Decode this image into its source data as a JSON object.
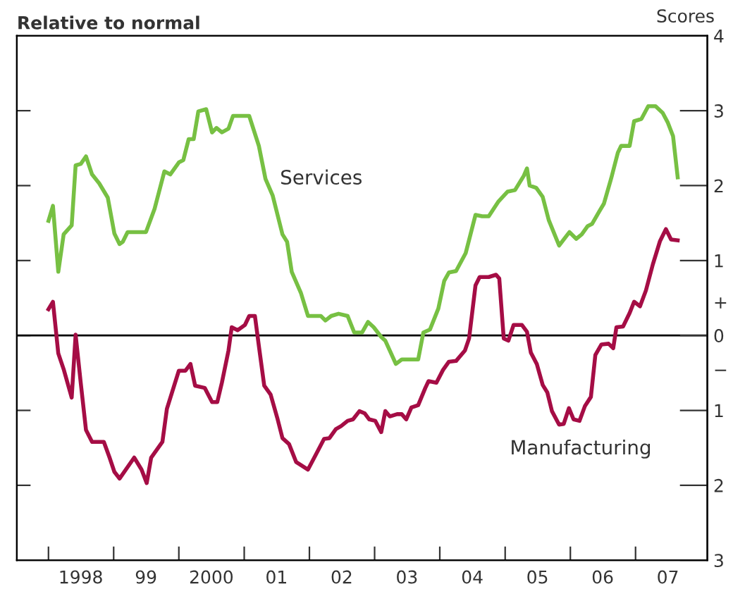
{
  "chart_data": {
    "type": "line",
    "ylabel": "Relative to normal",
    "y2label": "Scores",
    "xlim": [
      "1997-07-08",
      "2008-02-07"
    ],
    "xticks": [
      {
        "value": "1998-01-01",
        "label": null
      },
      {
        "value": "1999-01-01",
        "label": null
      },
      {
        "value": "2000-01-01",
        "label": null
      },
      {
        "value": "2001-01-01",
        "label": null
      },
      {
        "value": "2002-01-01",
        "label": null
      },
      {
        "value": "2003-01-01",
        "label": null
      },
      {
        "value": "2004-01-01",
        "label": null
      },
      {
        "value": "2005-01-01",
        "label": null
      },
      {
        "value": "2006-01-01",
        "label": null
      },
      {
        "value": "2007-01-01",
        "label": null
      },
      {
        "value": "1998-07-01",
        "label": "1998"
      },
      {
        "value": "1999-07-01",
        "label": "99"
      },
      {
        "value": "2000-07-01",
        "label": "2000"
      },
      {
        "value": "2001-07-01",
        "label": "01"
      },
      {
        "value": "2002-07-01",
        "label": "02"
      },
      {
        "value": "2003-07-01",
        "label": "03"
      },
      {
        "value": "2004-07-01",
        "label": "04"
      },
      {
        "value": "2005-07-01",
        "label": "05"
      },
      {
        "value": "2006-07-01",
        "label": "06"
      },
      {
        "value": "2007-07-01",
        "label": "07"
      }
    ],
    "y2lim": [
      -3,
      4
    ],
    "y2ticks": [
      4,
      3,
      2,
      1,
      {
        "value": 0.45,
        "label": "+"
      },
      0,
      {
        "value": -0.45,
        "label": "−"
      },
      {
        "value": -1,
        "label": "1"
      },
      {
        "value": -2,
        "label": "2"
      },
      {
        "value": -3,
        "label": "3"
      }
    ],
    "grid": false,
    "legend": false,
    "line_style": "solid",
    "marker": "none",
    "ref_lines": [
      {
        "axis": "y2",
        "value": 0,
        "color": "#000000",
        "line_style": "solid"
      }
    ],
    "annotations": [
      "Services",
      "Manufacturing"
    ],
    "series": [
      {
        "color": "#77c043",
        "axis": "y2",
        "x": [
          "1998-01-01",
          "1998-01-26",
          "1998-02-25",
          "1998-03-27",
          "1998-05-11",
          "1998-06-02",
          "1998-07-01",
          "1998-07-30",
          "1998-09-02",
          "1998-10-12",
          "1998-11-29",
          "1999-01-05",
          "1999-02-03",
          "1999-02-21",
          "1999-03-20",
          "1999-07-01",
          "1999-08-18",
          "1999-10-12",
          "1999-11-14",
          "2000-01-01",
          "2000-01-26",
          "2000-02-25",
          "2000-03-24",
          "2000-04-19",
          "2000-06-02",
          "2000-07-05",
          "2000-07-30",
          "2000-08-29",
          "2000-10-05",
          "2000-10-30",
          "2001-01-29",
          "2001-03-24",
          "2001-04-30",
          "2001-06-09",
          "2001-08-03",
          "2001-08-29",
          "2001-09-24",
          "2001-11-14",
          "2001-12-24",
          "2002-03-06",
          "2002-04-01",
          "2002-05-03",
          "2002-06-13",
          "2002-08-03",
          "2002-09-09",
          "2002-10-23",
          "2002-11-25",
          "2002-12-27",
          "2003-02-07",
          "2003-03-02",
          "2003-04-30",
          "2003-06-02",
          "2003-09-02",
          "2003-10-01",
          "2003-11-07",
          "2003-12-24",
          "2004-01-26",
          "2004-02-21",
          "2004-04-01",
          "2004-05-25",
          "2004-07-19",
          "2004-08-25",
          "2004-10-01",
          "2004-11-25",
          "2005-01-15",
          "2005-02-25",
          "2005-04-15",
          "2005-05-03",
          "2005-05-18",
          "2005-06-24",
          "2005-07-30",
          "2005-09-02",
          "2005-10-30",
          "2005-12-27",
          "2006-02-03",
          "2006-03-06",
          "2006-04-08",
          "2006-05-03",
          "2006-06-13",
          "2006-07-08",
          "2006-08-18",
          "2006-09-24",
          "2006-10-12",
          "2006-11-29",
          "2006-12-24",
          "2007-02-03",
          "2007-03-13",
          "2007-04-23",
          "2007-06-02",
          "2007-07-01",
          "2007-07-30",
          "2007-08-25"
        ],
        "values": [
          1.53,
          1.73,
          0.85,
          1.35,
          1.47,
          2.27,
          2.29,
          2.39,
          2.15,
          2.03,
          1.84,
          1.36,
          1.22,
          1.25,
          1.38,
          1.38,
          1.69,
          2.19,
          2.15,
          2.31,
          2.34,
          2.62,
          2.62,
          2.99,
          3.02,
          2.71,
          2.77,
          2.71,
          2.76,
          2.93,
          2.93,
          2.53,
          2.09,
          1.87,
          1.35,
          1.25,
          0.85,
          0.57,
          0.26,
          0.26,
          0.2,
          0.26,
          0.29,
          0.26,
          0.04,
          0.04,
          0.18,
          0.11,
          -0.02,
          -0.07,
          -0.38,
          -0.32,
          -0.32,
          0.04,
          0.08,
          0.36,
          0.73,
          0.84,
          0.86,
          1.1,
          1.61,
          1.59,
          1.59,
          1.79,
          1.92,
          1.94,
          2.13,
          2.23,
          2.0,
          1.97,
          1.85,
          1.54,
          1.2,
          1.38,
          1.29,
          1.35,
          1.46,
          1.49,
          1.66,
          1.76,
          2.1,
          2.44,
          2.53,
          2.53,
          2.86,
          2.89,
          3.06,
          3.06,
          2.97,
          2.84,
          2.66,
          2.11
        ]
      },
      {
        "color": "#a50d45",
        "axis": "y2",
        "x": [
          "1998-01-01",
          "1998-01-26",
          "1998-02-25",
          "1998-03-27",
          "1998-05-11",
          "1998-06-02",
          "1998-07-01",
          "1998-07-30",
          "1998-09-02",
          "1998-11-07",
          "1998-12-09",
          "1999-01-05",
          "1999-02-03",
          "1999-04-26",
          "1999-06-06",
          "1999-07-05",
          "1999-07-30",
          "1999-10-01",
          "1999-10-26",
          "2000-01-01",
          "2000-02-07",
          "2000-03-06",
          "2000-04-01",
          "2000-05-25",
          "2000-07-05",
          "2000-08-03",
          "2000-08-29",
          "2000-10-05",
          "2000-10-23",
          "2000-11-25",
          "2001-01-05",
          "2001-01-29",
          "2001-03-02",
          "2001-03-24",
          "2001-04-23",
          "2001-05-29",
          "2001-07-05",
          "2001-08-03",
          "2001-09-09",
          "2001-10-19",
          "2001-12-24",
          "2002-02-17",
          "2002-03-24",
          "2002-04-23",
          "2002-05-29",
          "2002-06-27",
          "2002-08-03",
          "2002-09-02",
          "2002-10-08",
          "2002-11-07",
          "2002-12-02",
          "2003-01-05",
          "2003-02-07",
          "2003-03-02",
          "2003-03-27",
          "2003-05-07",
          "2003-06-02",
          "2003-06-27",
          "2003-07-26",
          "2003-09-02",
          "2003-10-12",
          "2003-10-30",
          "2003-12-13",
          "2004-01-19",
          "2004-02-21",
          "2004-04-01",
          "2004-05-21",
          "2004-06-13",
          "2004-07-19",
          "2004-08-11",
          "2004-10-01",
          "2004-11-11",
          "2004-11-29",
          "2004-12-24",
          "2005-01-19",
          "2005-02-17",
          "2005-04-05",
          "2005-05-03",
          "2005-05-25",
          "2005-06-27",
          "2005-07-30",
          "2005-08-25",
          "2005-09-20",
          "2005-10-30",
          "2005-11-25",
          "2005-12-24",
          "2006-01-19",
          "2006-02-21",
          "2006-03-24",
          "2006-04-26",
          "2006-05-21",
          "2006-06-24",
          "2006-08-03",
          "2006-08-29",
          "2006-09-16",
          "2006-10-23",
          "2006-11-29",
          "2006-12-24",
          "2007-01-26",
          "2007-02-28",
          "2007-04-08",
          "2007-05-18",
          "2007-06-20",
          "2007-07-19",
          "2007-08-25"
        ],
        "values": [
          0.35,
          0.45,
          -0.24,
          -0.45,
          -0.83,
          0.01,
          -0.64,
          -1.26,
          -1.42,
          -1.42,
          -1.63,
          -1.82,
          -1.91,
          -1.63,
          -1.79,
          -1.97,
          -1.63,
          -1.42,
          -0.98,
          -0.47,
          -0.47,
          -0.38,
          -0.67,
          -0.7,
          -0.89,
          -0.89,
          -0.63,
          -0.2,
          0.11,
          0.07,
          0.14,
          0.26,
          0.26,
          -0.14,
          -0.67,
          -0.79,
          -1.1,
          -1.37,
          -1.45,
          -1.69,
          -1.79,
          -1.54,
          -1.38,
          -1.37,
          -1.25,
          -1.21,
          -1.14,
          -1.12,
          -1.01,
          -1.04,
          -1.12,
          -1.14,
          -1.29,
          -1.01,
          -1.08,
          -1.05,
          -1.05,
          -1.12,
          -0.96,
          -0.93,
          -0.7,
          -0.61,
          -0.63,
          -0.46,
          -0.35,
          -0.34,
          -0.2,
          -0.04,
          0.67,
          0.78,
          0.78,
          0.81,
          0.76,
          -0.04,
          -0.07,
          0.14,
          0.14,
          0.05,
          -0.23,
          -0.38,
          -0.66,
          -0.76,
          -1.01,
          -1.19,
          -1.18,
          -0.97,
          -1.12,
          -1.14,
          -0.94,
          -0.82,
          -0.26,
          -0.12,
          -0.11,
          -0.17,
          0.11,
          0.12,
          0.3,
          0.45,
          0.39,
          0.6,
          0.95,
          1.26,
          1.42,
          1.28,
          1.27
        ]
      }
    ]
  }
}
